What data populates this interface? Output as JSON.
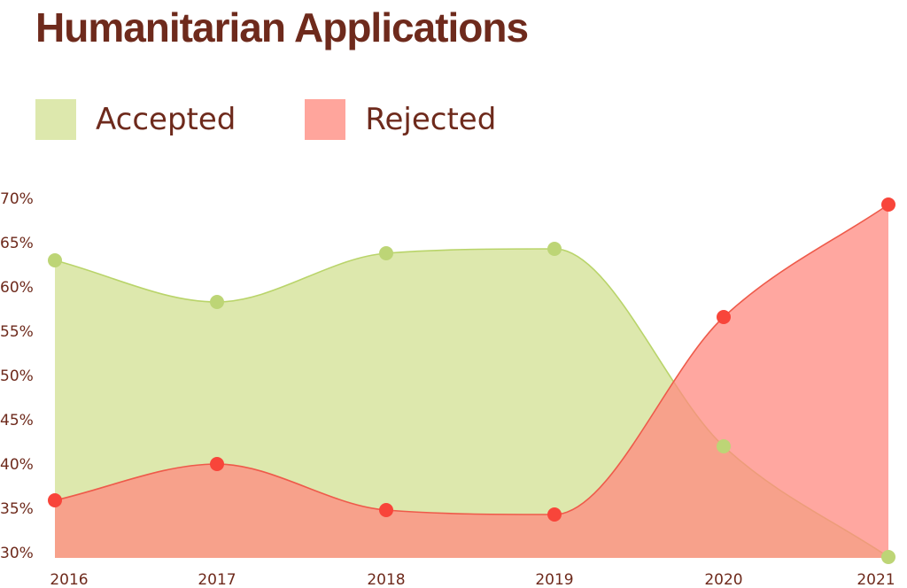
{
  "chart_data": {
    "type": "area",
    "title": "Humanitarian Applications",
    "categories": [
      "2016",
      "2017",
      "2018",
      "2019",
      "2020",
      "2021"
    ],
    "ylim": [
      29,
      70
    ],
    "y_ticks": [
      "30%",
      "35%",
      "40%",
      "45%",
      "50%",
      "55%",
      "60%",
      "65%",
      "70%"
    ],
    "y_tick_values": [
      30,
      35,
      40,
      45,
      50,
      55,
      60,
      65,
      70
    ],
    "legend_position": "top-left",
    "grid": false,
    "series": [
      {
        "name": "Accepted",
        "values": [
          63.0,
          58.3,
          63.8,
          64.3,
          42.0,
          29.5
        ],
        "fill": "#dde8ad",
        "line": "#b9d46a",
        "marker": "#bdd576"
      },
      {
        "name": "Rejected",
        "values": [
          35.9,
          40.0,
          34.8,
          34.3,
          56.6,
          69.3
        ],
        "fill": "#ff8a80",
        "fill_opacity": 0.75,
        "line": "#ee5a4a",
        "marker": "#f8453a"
      }
    ]
  }
}
